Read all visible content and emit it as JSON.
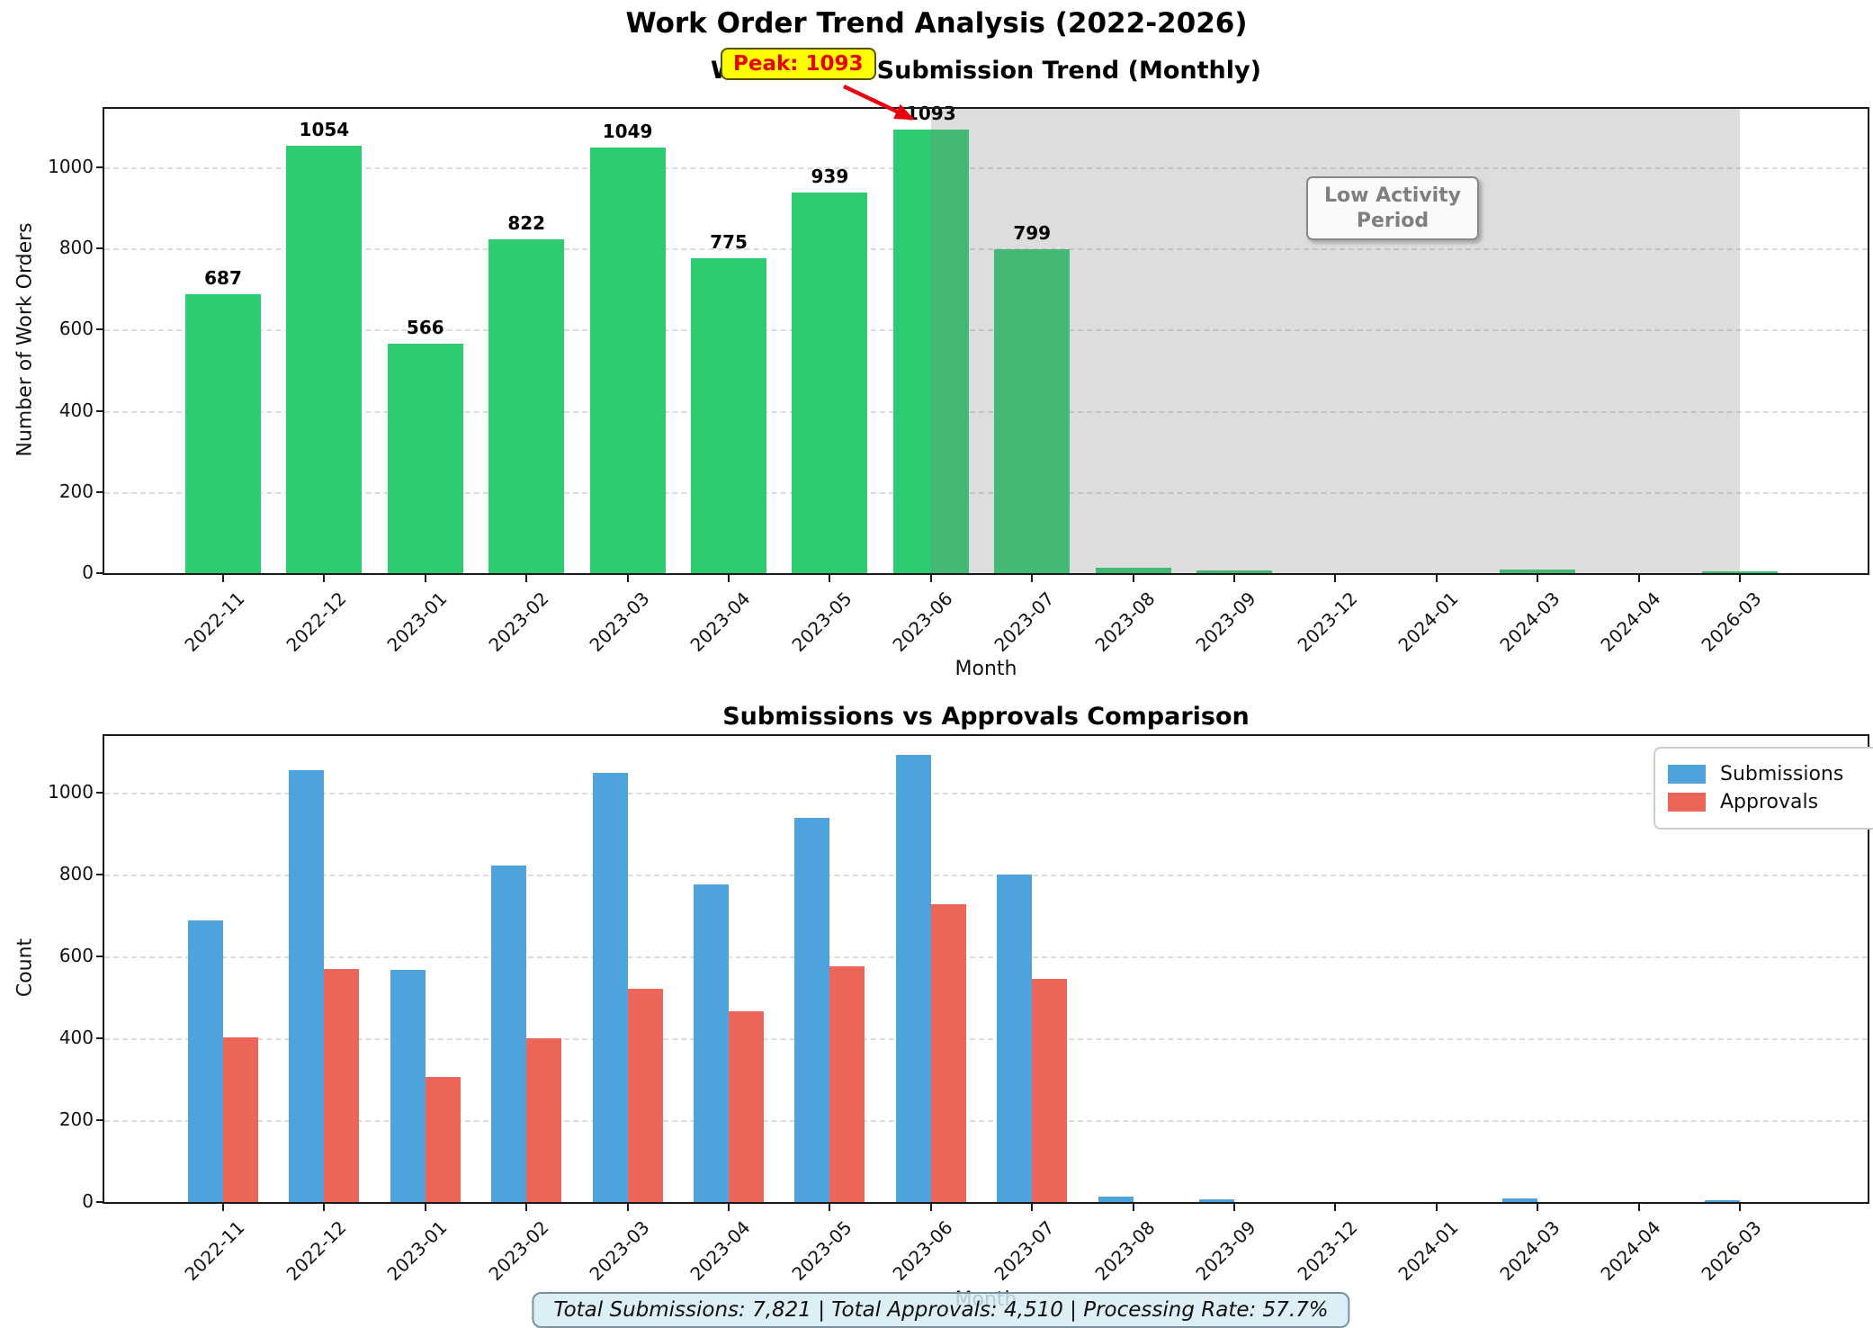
{
  "figure": {
    "title": "Work Order Trend Analysis (2022-2026)"
  },
  "summary": {
    "text": "Total Submissions: 7,821 | Total Approvals: 4,510 | Processing Rate: 57.7%"
  },
  "chart_data": [
    {
      "type": "bar",
      "title": "Work Order Submission Trend (Monthly)",
      "xlabel": "Month",
      "ylabel": "Number of Work Orders",
      "categories": [
        "2022-11",
        "2022-12",
        "2023-01",
        "2023-02",
        "2023-03",
        "2023-04",
        "2023-05",
        "2023-06",
        "2023-07",
        "2023-08",
        "2023-09",
        "2023-12",
        "2024-01",
        "2024-03",
        "2024-04",
        "2026-03"
      ],
      "values": [
        687,
        1054,
        566,
        822,
        1049,
        775,
        939,
        1093,
        799,
        14,
        6,
        1,
        1,
        9,
        1,
        5
      ],
      "bar_color": "#2ecc71",
      "ylim": [
        0,
        1140
      ],
      "yticks": [
        0,
        200,
        400,
        600,
        800,
        1000
      ],
      "grid": "dashed-horizontal",
      "value_labels_min": 100,
      "annotations": {
        "peak": {
          "text": "Peak: 1093",
          "target_category": "2023-06",
          "target_value": 1093,
          "box_color": "#ffff00",
          "text_color": "#e8000d",
          "arrow_color": "#e8000d"
        },
        "low_activity_span": {
          "label": "Low Activity Period",
          "from_index": 7.5,
          "to_index": 15.5,
          "color": "rgba(128,128,128,0.27)"
        }
      }
    },
    {
      "type": "grouped_bar",
      "title": "Submissions vs Approvals Comparison",
      "xlabel": "Month",
      "ylabel": "Count",
      "categories": [
        "2022-11",
        "2022-12",
        "2023-01",
        "2023-02",
        "2023-03",
        "2023-04",
        "2023-05",
        "2023-06",
        "2023-07",
        "2023-08",
        "2023-09",
        "2023-12",
        "2024-01",
        "2024-03",
        "2024-04",
        "2026-03"
      ],
      "series": [
        {
          "name": "Submissions",
          "color": "#4fa3dc",
          "values": [
            687,
            1054,
            566,
            822,
            1049,
            775,
            939,
            1093,
            799,
            14,
            6,
            1,
            1,
            9,
            1,
            5
          ]
        },
        {
          "name": "Approvals",
          "color": "#ec6558",
          "values": [
            403,
            570,
            305,
            400,
            520,
            465,
            575,
            727,
            545,
            0,
            0,
            0,
            0,
            0,
            0,
            0
          ]
        }
      ],
      "ylim": [
        0,
        1140
      ],
      "yticks": [
        0,
        200,
        400,
        600,
        800,
        1000
      ],
      "grid": "dashed-horizontal",
      "legend": {
        "position": "upper-right",
        "entries": [
          "Submissions",
          "Approvals"
        ]
      }
    }
  ]
}
